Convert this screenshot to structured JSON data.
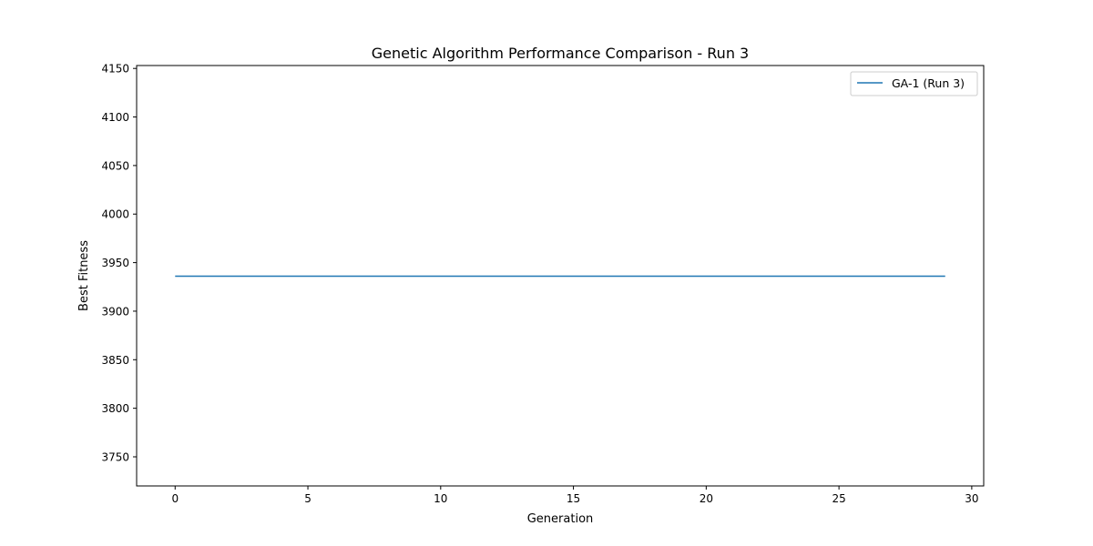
{
  "chart_data": {
    "type": "line",
    "title": "Genetic Algorithm Performance Comparison - Run 3",
    "xlabel": "Generation",
    "ylabel": "Best Fitness",
    "xlim": [
      -1.45,
      30.45
    ],
    "ylim": [
      3720,
      4153
    ],
    "xticks": [
      0,
      5,
      10,
      15,
      20,
      25,
      30
    ],
    "yticks": [
      3750,
      3800,
      3850,
      3900,
      3950,
      4000,
      4050,
      4100,
      4150
    ],
    "grid": false,
    "legend": "top-right",
    "series": [
      {
        "name": "GA-1 (Run 3)",
        "color": "#1f77b4",
        "x": [
          0,
          1,
          2,
          3,
          4,
          5,
          6,
          7,
          8,
          9,
          10,
          11,
          12,
          13,
          14,
          15,
          16,
          17,
          18,
          19,
          20,
          21,
          22,
          23,
          24,
          25,
          26,
          27,
          28,
          29
        ],
        "values": [
          3936,
          3936,
          3936,
          3936,
          3936,
          3936,
          3936,
          3936,
          3936,
          3936,
          3936,
          3936,
          3936,
          3936,
          3936,
          3936,
          3936,
          3936,
          3936,
          3936,
          3936,
          3936,
          3936,
          3936,
          3936,
          3936,
          3936,
          3936,
          3936,
          3936
        ]
      }
    ]
  }
}
